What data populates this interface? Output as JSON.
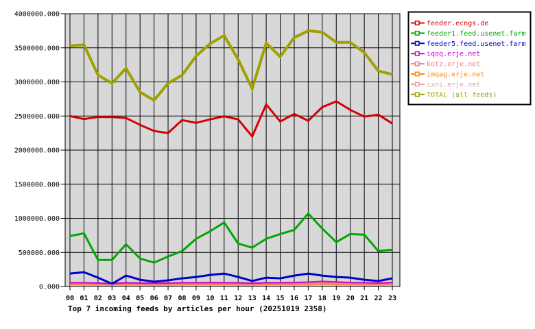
{
  "title": "Top 7 incoming feeds by articles per hour (20251019 2358)",
  "colors": {
    "page_background": "#ffffff",
    "plot_background": "#d8d8d8",
    "grid": "#000000",
    "axis_text": "#000000",
    "legend_background": "#ffffff",
    "legend_border": "#000000"
  },
  "chart_data": {
    "type": "line",
    "title": "Top 7 incoming feeds by articles per hour (20251019 2358)",
    "xlabel": "",
    "ylabel": "",
    "x_labels": [
      "00",
      "01",
      "02",
      "03",
      "04",
      "05",
      "06",
      "07",
      "08",
      "09",
      "10",
      "11",
      "12",
      "13",
      "14",
      "15",
      "16",
      "17",
      "18",
      "19",
      "20",
      "21",
      "22",
      "23"
    ],
    "y_tick_labels": [
      "4000000.000",
      "3500000.000",
      "3000000.000",
      "2500000.000",
      "2000000.000",
      "1500000.000",
      "1000000.000",
      "500000.000",
      "0.000"
    ],
    "ylim": [
      0,
      4000000
    ],
    "y_tick_step": 500000,
    "grid": true,
    "legend_position": "top-right",
    "series": [
      {
        "name": "feeder.ecngs.de",
        "color": "#d40000",
        "line_width": 3,
        "values": [
          2500000,
          2455000,
          2485000,
          2485000,
          2470000,
          2370000,
          2280000,
          2250000,
          2440000,
          2400000,
          2450000,
          2495000,
          2450000,
          2200000,
          2670000,
          2420000,
          2530000,
          2430000,
          2630000,
          2715000,
          2590000,
          2490000,
          2520000,
          2390000
        ]
      },
      {
        "name": "feeder1.feed.usenet.farm",
        "color": "#00a800",
        "line_width": 3,
        "values": [
          740000,
          780000,
          390000,
          390000,
          620000,
          410000,
          350000,
          440000,
          520000,
          700000,
          810000,
          940000,
          630000,
          570000,
          700000,
          770000,
          830000,
          1070000,
          850000,
          650000,
          770000,
          760000,
          520000,
          540000
        ]
      },
      {
        "name": "feeder5.feed.usenet.farm",
        "color": "#0000cc",
        "line_width": 3,
        "values": [
          190000,
          210000,
          130000,
          40000,
          160000,
          100000,
          70000,
          90000,
          120000,
          140000,
          170000,
          190000,
          140000,
          80000,
          130000,
          120000,
          160000,
          190000,
          160000,
          140000,
          130000,
          100000,
          80000,
          120000
        ]
      },
      {
        "name": "iqoq.erje.net",
        "color": "#cc00cc",
        "line_width": 2,
        "values": [
          55000,
          55000,
          50000,
          45000,
          55000,
          50000,
          48000,
          50000,
          55000,
          55000,
          58000,
          55000,
          55000,
          48000,
          55000,
          55000,
          58000,
          65000,
          75000,
          68000,
          58000,
          55000,
          50000,
          58000
        ]
      },
      {
        "name": "kotz.erje.net",
        "color": "#f08080",
        "line_width": 3,
        "values": [
          40000,
          40000,
          38000,
          35000,
          40000,
          38000,
          36000,
          38000,
          40000,
          40000,
          40000,
          40000,
          38000,
          35000,
          40000,
          40000,
          40000,
          45000,
          48000,
          45000,
          40000,
          38000,
          36000,
          40000
        ]
      },
      {
        "name": "imqag.erje.net",
        "color": "#ff8800",
        "line_width": 2,
        "values": [
          30000,
          30000,
          28000,
          26000,
          30000,
          28000,
          27000,
          28000,
          30000,
          30000,
          30000,
          30000,
          28000,
          26000,
          30000,
          30000,
          30000,
          33000,
          36000,
          33000,
          30000,
          28000,
          27000,
          30000
        ]
      },
      {
        "name": "ixni.erje.net",
        "color": "#e8a0a0",
        "line_width": 2,
        "values": [
          22000,
          22000,
          20000,
          19000,
          22000,
          20000,
          20000,
          20000,
          22000,
          22000,
          22000,
          22000,
          20000,
          19000,
          22000,
          22000,
          22000,
          24000,
          26000,
          24000,
          22000,
          20000,
          20000,
          22000
        ]
      },
      {
        "name": "TOTAL (all feeds)",
        "color": "#a0a000",
        "line_width": 4,
        "values": [
          3530000,
          3545000,
          3100000,
          2980000,
          3200000,
          2850000,
          2730000,
          2980000,
          3100000,
          3380000,
          3560000,
          3680000,
          3330000,
          2900000,
          3570000,
          3370000,
          3650000,
          3750000,
          3730000,
          3580000,
          3580000,
          3430000,
          3160000,
          3110000
        ]
      }
    ],
    "draw_order": [
      6,
      5,
      4,
      3,
      2,
      1,
      0,
      7
    ]
  }
}
